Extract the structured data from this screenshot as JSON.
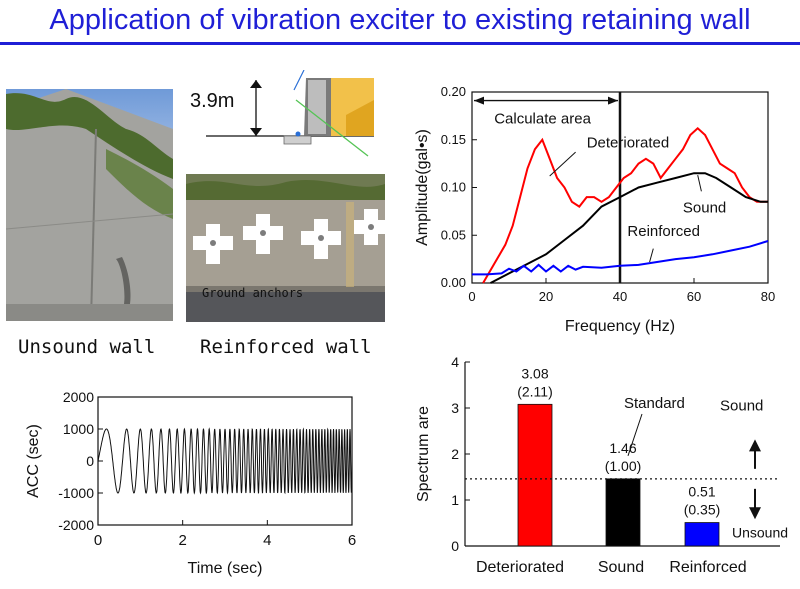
{
  "title": "Application of vibration exciter to existing retaining wall",
  "photos": {
    "unsound_caption": "Unsound wall",
    "reinforced_caption": "Reinforced wall",
    "anchors_label": "Ground anchors"
  },
  "wall_section": {
    "height_label": "3.9m"
  },
  "colors": {
    "title": "#1f1fd6",
    "deteriorated": "#ff0000",
    "sound": "#000000",
    "reinforced": "#0000ff"
  },
  "chart_data": [
    {
      "type": "line",
      "title": "",
      "xlabel": "Frequency (Hz)",
      "ylabel": "Amplitude(gal•s)",
      "xlim": [
        0,
        80
      ],
      "ylim": [
        0.0,
        0.2
      ],
      "xticks": [
        "0",
        "20",
        "40",
        "60",
        "80"
      ],
      "yticks": [
        "0.00",
        "0.05",
        "0.10",
        "0.15",
        "0.20"
      ],
      "annotations": {
        "calc_area": "Calculate area",
        "deteriorated": "Deteriorated",
        "sound": "Sound",
        "reinforced": "Reinforced"
      },
      "calc_area_limit": 40,
      "series": [
        {
          "name": "Deteriorated",
          "x": [
            3,
            6,
            9,
            11,
            13,
            15,
            17,
            19,
            21,
            23,
            25,
            27,
            29,
            31,
            33,
            35,
            37,
            39,
            41,
            43,
            45,
            47,
            49,
            51,
            53,
            55,
            57,
            59,
            61,
            63,
            65,
            67,
            69,
            71,
            73,
            75,
            77,
            80
          ],
          "y": [
            0.0,
            0.02,
            0.04,
            0.06,
            0.09,
            0.12,
            0.14,
            0.15,
            0.13,
            0.11,
            0.1,
            0.085,
            0.08,
            0.09,
            0.09,
            0.085,
            0.09,
            0.1,
            0.11,
            0.115,
            0.125,
            0.13,
            0.125,
            0.11,
            0.12,
            0.13,
            0.14,
            0.155,
            0.162,
            0.155,
            0.14,
            0.125,
            0.12,
            0.115,
            0.1,
            0.09,
            0.085,
            0.085
          ]
        },
        {
          "name": "Sound",
          "x": [
            5,
            10,
            15,
            20,
            25,
            30,
            35,
            40,
            45,
            50,
            55,
            60,
            63,
            66,
            70,
            74,
            78,
            80
          ],
          "y": [
            0.0,
            0.01,
            0.02,
            0.03,
            0.045,
            0.06,
            0.08,
            0.09,
            0.1,
            0.105,
            0.11,
            0.115,
            0.115,
            0.11,
            0.1,
            0.09,
            0.085,
            0.085
          ]
        },
        {
          "name": "Reinforced",
          "x": [
            0,
            4,
            8,
            10,
            12,
            14,
            16,
            18,
            20,
            22,
            24,
            26,
            28,
            30,
            35,
            40,
            45,
            50,
            55,
            60,
            65,
            70,
            75,
            80
          ],
          "y": [
            0.009,
            0.009,
            0.01,
            0.015,
            0.012,
            0.018,
            0.012,
            0.019,
            0.012,
            0.018,
            0.012,
            0.018,
            0.014,
            0.017,
            0.016,
            0.018,
            0.019,
            0.022,
            0.025,
            0.027,
            0.03,
            0.034,
            0.038,
            0.044
          ]
        }
      ]
    },
    {
      "type": "line",
      "title": "",
      "xlabel": "Time (sec)",
      "ylabel": "ACC (sec)",
      "xlim": [
        0,
        6
      ],
      "ylim": [
        -2000,
        2000
      ],
      "xticks": [
        "0",
        "2",
        "4",
        "6"
      ],
      "yticks": [
        "-2000",
        "-1000",
        "0",
        "1000",
        "2000"
      ],
      "series": [
        {
          "name": "",
          "amplitude": 1000,
          "sweep_f0_hz": 1,
          "sweep_f1_hz": 16
        }
      ]
    },
    {
      "type": "bar",
      "title": "",
      "xlabel": "",
      "ylabel": "Spectrum are",
      "ylim": [
        0,
        4
      ],
      "yticks": [
        "0",
        "1",
        "2",
        "3",
        "4"
      ],
      "categories": [
        "Deteriorated",
        "Sound",
        "Reinforced"
      ],
      "values": [
        3.08,
        1.46,
        0.51
      ],
      "value_labels": [
        "3.08",
        "1.46",
        "0.51"
      ],
      "ratio_labels": [
        "(2.11)",
        "(1.00)",
        "(0.35)"
      ],
      "colors": [
        "#ff0000",
        "#000000",
        "#0000ff"
      ],
      "standard": 1.46,
      "standard_label": "Standard",
      "side_labels": {
        "top": "Sound",
        "bottom": "Unsound"
      }
    }
  ]
}
